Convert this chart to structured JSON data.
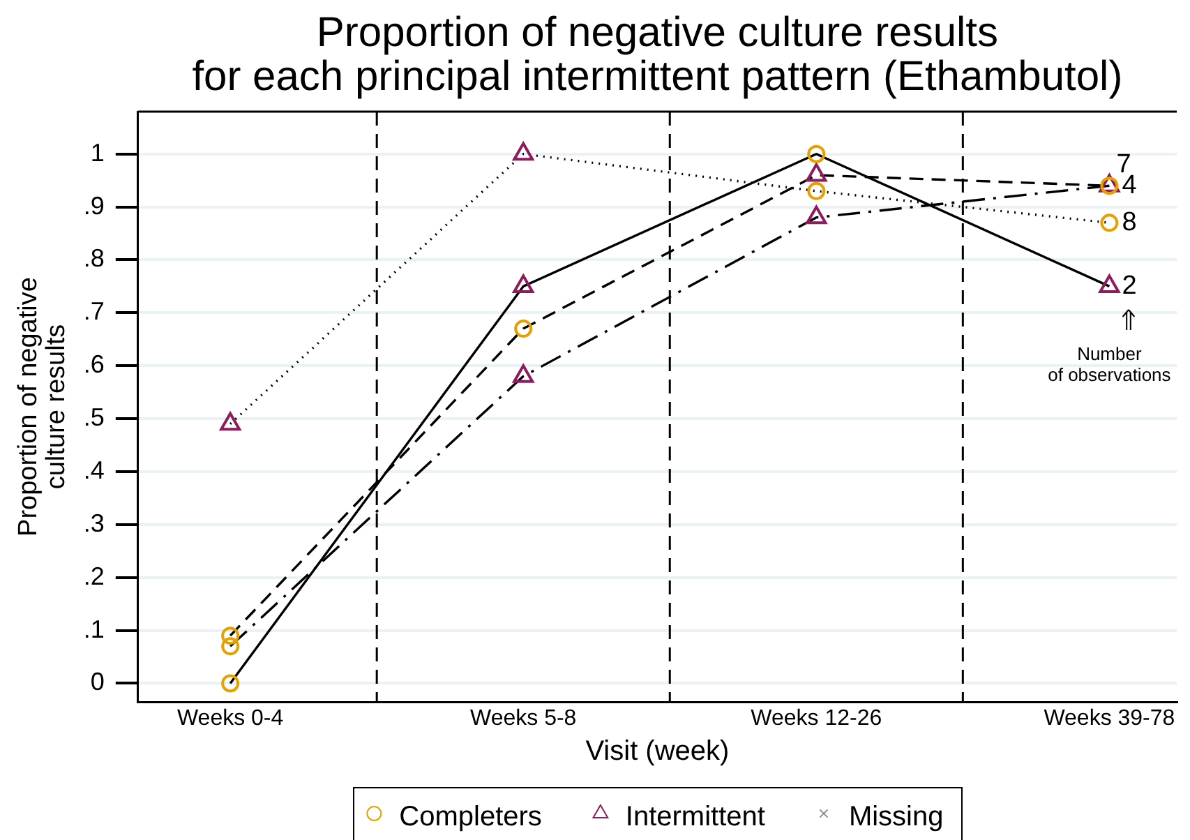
{
  "chart_data": {
    "type": "line",
    "title": "Proportion of negative culture results\nfor each principal intermittent pattern (Ethambutol)",
    "xlabel": "Visit (week)",
    "ylabel": "Proportion of negative\nculture results",
    "categories": [
      "Weeks 0-4",
      "Weeks 5-8",
      "Weeks 12-26",
      "Weeks 39-78"
    ],
    "ylim": [
      -0.035,
      1.08
    ],
    "yticks": [
      0,
      {
        "value": 0.1,
        "label": ".1"
      },
      {
        "value": 0.2,
        "label": ".2"
      },
      {
        "value": 0.3,
        "label": ".3"
      },
      {
        "value": 0.4,
        "label": ".4"
      },
      {
        "value": 0.5,
        "label": ".5"
      },
      {
        "value": 0.6,
        "label": ".6"
      },
      {
        "value": 0.7,
        "label": ".7"
      },
      {
        "value": 0.8,
        "label": ".8"
      },
      {
        "value": 0.9,
        "label": ".9"
      },
      1
    ],
    "grid": "y",
    "legend": "bottom",
    "series": [
      {
        "color": "#000000",
        "line_style": "solid",
        "marker": "none",
        "values": [
          0,
          0.75,
          1,
          0.75
        ]
      },
      {
        "color": "#000000",
        "line_style": "dashed",
        "marker": "none",
        "values": [
          0.09,
          0.67,
          0.96,
          0.94
        ]
      },
      {
        "color": "#000000",
        "line_style": "dashdot",
        "marker": "none",
        "values": [
          0.07,
          0.58,
          0.88,
          0.94
        ]
      },
      {
        "color": "#000000",
        "line_style": "dotted",
        "marker": "none",
        "values": [
          0.49,
          1,
          0.93,
          0.87
        ]
      },
      {
        "type": "scatter",
        "name": "Completers",
        "color": "#e6a100",
        "marker": "circle",
        "x": [
          "Weeks 0-4",
          "Weeks 0-4",
          "Weeks 0-4",
          "Weeks 5-8",
          "Weeks 12-26",
          "Weeks 12-26",
          "Weeks 39-78",
          "Weeks 39-78"
        ],
        "values": [
          0,
          0.09,
          0.07,
          0.67,
          1,
          0.93,
          0.94,
          0.87
        ]
      },
      {
        "type": "scatter",
        "name": "Intermittent",
        "color": "#8e1b5c",
        "marker": "triangle",
        "x": [
          "Weeks 0-4",
          "Weeks 5-8",
          "Weeks 5-8",
          "Weeks 5-8",
          "Weeks 12-26",
          "Weeks 12-26",
          "Weeks 39-78",
          "Weeks 39-78"
        ],
        "values": [
          0.49,
          1,
          0.75,
          0.58,
          0.96,
          0.88,
          0.94,
          0.75
        ]
      },
      {
        "type": "scatter",
        "name": "Missing",
        "color": "#8c8c8c",
        "marker": "cross",
        "values": [
          null,
          null,
          null,
          null
        ]
      }
    ],
    "annotations": [
      {
        "text": "2",
        "x": "Weeks 39-78",
        "y": 0.75
      },
      {
        "text": "4",
        "x": "Weeks 39-78",
        "y": 0.94
      },
      {
        "text": "7",
        "x": "Weeks 39-78",
        "y": 0.94
      },
      {
        "text": "8",
        "x": "Weeks 39-78",
        "y": 0.87
      },
      "Number\nof observations"
    ]
  }
}
